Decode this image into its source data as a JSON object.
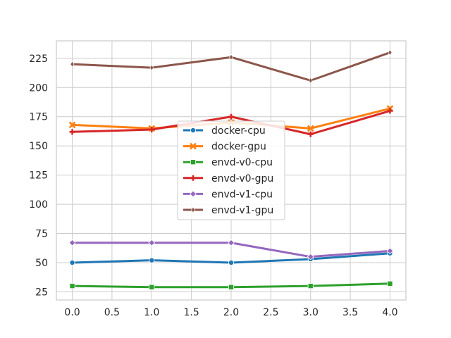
{
  "chart_data": {
    "type": "line",
    "title": "",
    "xlabel": "",
    "ylabel": "",
    "x": [
      0,
      1,
      2,
      3,
      4
    ],
    "xlim": [
      -0.2,
      4.2
    ],
    "ylim": [
      18,
      240
    ],
    "xticks": [
      0.0,
      0.5,
      1.0,
      1.5,
      2.0,
      2.5,
      3.0,
      3.5,
      4.0
    ],
    "xtick_labels": [
      "0.0",
      "0.5",
      "1.0",
      "1.5",
      "2.0",
      "2.5",
      "3.0",
      "3.5",
      "4.0"
    ],
    "yticks": [
      25,
      50,
      75,
      100,
      125,
      150,
      175,
      200,
      225
    ],
    "ytick_labels": [
      "25",
      "50",
      "75",
      "100",
      "125",
      "150",
      "175",
      "200",
      "225"
    ],
    "grid": true,
    "legend_position": "center",
    "series": [
      {
        "name": "docker-cpu",
        "color": "#1f77b4",
        "marker": "circle",
        "values": [
          50,
          52,
          50,
          53,
          58
        ]
      },
      {
        "name": "docker-gpu",
        "color": "#ff7f0e",
        "marker": "x",
        "values": [
          168,
          165,
          170,
          165,
          182
        ]
      },
      {
        "name": "envd-v0-cpu",
        "color": "#2ca02c",
        "marker": "square",
        "values": [
          30,
          29,
          29,
          30,
          32
        ]
      },
      {
        "name": "envd-v0-gpu",
        "color": "#d62728",
        "marker": "plus",
        "values": [
          162,
          164,
          175,
          160,
          180
        ]
      },
      {
        "name": "envd-v1-cpu",
        "color": "#9467bd",
        "marker": "diamond",
        "values": [
          67,
          67,
          67,
          55,
          60
        ]
      },
      {
        "name": "envd-v1-gpu",
        "color": "#8c564b",
        "marker": "thin-diamond",
        "values": [
          220,
          217,
          226,
          206,
          230
        ]
      }
    ]
  }
}
